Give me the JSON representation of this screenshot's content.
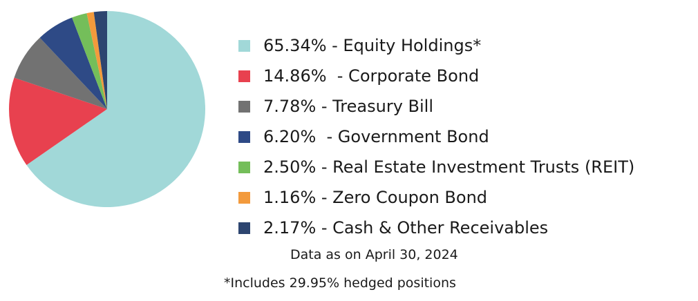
{
  "chart_data": {
    "type": "pie",
    "slices": [
      {
        "label": "65.34% - Equity Holdings*",
        "value": 65.34,
        "color": "#a1d8d8"
      },
      {
        "label": "14.86%  - Corporate Bond",
        "value": 14.86,
        "color": "#e8414f"
      },
      {
        "label": "7.78% - Treasury Bill",
        "value": 7.78,
        "color": "#727272"
      },
      {
        "label": "6.20%  - Government Bond",
        "value": 6.2,
        "color": "#2e4a86"
      },
      {
        "label": "2.50% - Real Estate Investment Trusts (REIT)",
        "value": 2.5,
        "color": "#74be5a"
      },
      {
        "label": "1.16% - Zero Coupon Bond",
        "value": 1.16,
        "color": "#f39a3c"
      },
      {
        "label": "2.17% - Cash & Other Receivables",
        "value": 2.17,
        "color": "#2d4570"
      }
    ],
    "legend_position": "right"
  },
  "notes": {
    "as_of": "Data as on April 30, 2024",
    "footnote": "*Includes 29.95% hedged positions"
  }
}
